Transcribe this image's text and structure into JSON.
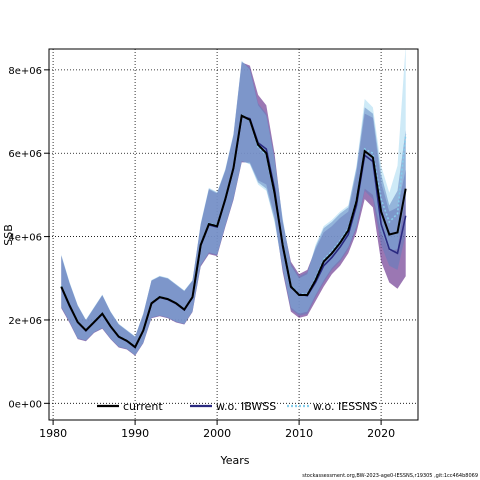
{
  "chart_data": {
    "type": "line",
    "xlabel": "Years",
    "ylabel": "SSB",
    "xlim": [
      1979.5,
      2024.5
    ],
    "ylim": [
      -400000,
      8500000
    ],
    "x_ticks": [
      1980,
      1990,
      2000,
      2010,
      2020
    ],
    "x_tick_labels": [
      "1980",
      "1990",
      "2000",
      "2010",
      "2020"
    ],
    "y_ticks": [
      0,
      2000000,
      4000000,
      6000000,
      8000000
    ],
    "y_tick_labels": [
      "0e+00",
      "2e+06",
      "4e+06",
      "6e+06",
      "8e+06"
    ],
    "grid": true,
    "legend_position": "bottom",
    "footer": "stockassessment.org,BW-2023-age0-IESSNS,r19305 ,git:1cc464b8069",
    "x": [
      1981,
      1982,
      1983,
      1984,
      1985,
      1986,
      1987,
      1988,
      1989,
      1990,
      1991,
      1992,
      1993,
      1994,
      1995,
      1996,
      1997,
      1998,
      1999,
      2000,
      2001,
      2002,
      2003,
      2004,
      2005,
      2006,
      2007,
      2008,
      2009,
      2010,
      2011,
      2012,
      2013,
      2014,
      2015,
      2016,
      2017,
      2018,
      2019,
      2020,
      2021,
      2022,
      2023
    ],
    "series": [
      {
        "name": "current",
        "color": "#000000",
        "band_color": "#5a7fbf",
        "values": [
          2800000,
          2350000,
          1950000,
          1750000,
          1950000,
          2150000,
          1850000,
          1600000,
          1500000,
          1350000,
          1750000,
          2400000,
          2550000,
          2500000,
          2400000,
          2250000,
          2550000,
          3800000,
          4300000,
          4250000,
          4900000,
          5650000,
          6900000,
          6800000,
          6200000,
          6000000,
          5050000,
          3800000,
          2800000,
          2600000,
          2600000,
          2950000,
          3400000,
          3600000,
          3850000,
          4150000,
          4850000,
          6050000,
          5900000,
          4600000,
          4050000,
          4100000,
          5150000
        ],
        "lower": [
          2300000,
          1950000,
          1550000,
          1500000,
          1700000,
          1800000,
          1550000,
          1350000,
          1300000,
          1150000,
          1450000,
          2050000,
          2100000,
          2050000,
          1950000,
          1900000,
          2200000,
          3300000,
          3600000,
          3550000,
          4250000,
          4900000,
          5800000,
          5750000,
          5300000,
          5150000,
          4400000,
          3200000,
          2250000,
          2100000,
          2150000,
          2550000,
          2900000,
          3200000,
          3400000,
          3700000,
          4200000,
          5100000,
          4900000,
          3800000,
          3300000,
          3200000,
          4050000
        ],
        "upper": [
          3550000,
          2900000,
          2350000,
          2000000,
          2300000,
          2600000,
          2200000,
          1900000,
          1750000,
          1600000,
          2150000,
          2950000,
          3050000,
          3000000,
          2850000,
          2700000,
          2950000,
          4300000,
          5150000,
          5050000,
          5600000,
          6450000,
          8200000,
          8050000,
          7200000,
          6950000,
          5900000,
          4400000,
          3350000,
          3050000,
          3150000,
          3750000,
          4200000,
          4350000,
          4550000,
          4700000,
          5650000,
          7100000,
          6950000,
          5500000,
          4750000,
          5100000,
          6550000
        ]
      },
      {
        "name": "w.o. IBWSS",
        "color": "#2a2a80",
        "band_color": "#7a4a9a",
        "values": [
          2780000,
          2330000,
          1940000,
          1740000,
          1940000,
          2140000,
          1840000,
          1590000,
          1490000,
          1340000,
          1740000,
          2390000,
          2540000,
          2490000,
          2390000,
          2240000,
          2540000,
          3780000,
          4280000,
          4230000,
          4880000,
          5630000,
          6880000,
          6830000,
          6250000,
          6100000,
          5150000,
          3750000,
          2780000,
          2620000,
          2580000,
          2900000,
          3300000,
          3500000,
          3750000,
          4050000,
          4750000,
          5950000,
          5800000,
          4300000,
          3700000,
          3600000,
          4500000
        ],
        "lower": [
          2280000,
          1930000,
          1540000,
          1490000,
          1690000,
          1790000,
          1540000,
          1340000,
          1290000,
          1140000,
          1440000,
          2040000,
          2090000,
          2040000,
          1940000,
          1890000,
          2190000,
          3280000,
          3580000,
          3530000,
          4230000,
          4880000,
          5780000,
          5780000,
          5350000,
          5250000,
          4500000,
          3150000,
          2200000,
          2050000,
          2100000,
          2450000,
          2800000,
          3100000,
          3300000,
          3600000,
          4100000,
          4900000,
          4700000,
          3400000,
          2900000,
          2750000,
          3050000
        ],
        "upper": [
          3530000,
          2880000,
          2340000,
          1990000,
          2290000,
          2590000,
          2190000,
          1890000,
          1740000,
          1590000,
          2140000,
          2940000,
          3040000,
          2990000,
          2840000,
          2690000,
          2940000,
          4280000,
          5130000,
          5030000,
          5580000,
          6430000,
          8180000,
          8100000,
          7400000,
          7150000,
          6000000,
          4350000,
          3400000,
          3100000,
          3200000,
          3700000,
          4100000,
          4250000,
          4450000,
          4600000,
          5550000,
          6950000,
          6850000,
          5300000,
          4600000,
          4700000,
          5600000
        ]
      },
      {
        "name": "w.o. IESSNS",
        "color": "#87ceeb",
        "band_color": "#a6d8f0",
        "values": [
          2820000,
          2360000,
          1960000,
          1760000,
          1960000,
          2160000,
          1860000,
          1610000,
          1510000,
          1360000,
          1760000,
          2410000,
          2560000,
          2510000,
          2410000,
          2260000,
          2560000,
          3820000,
          4320000,
          4270000,
          4920000,
          5670000,
          6920000,
          6780000,
          6150000,
          5950000,
          5000000,
          3850000,
          2830000,
          2620000,
          2620000,
          3000000,
          3450000,
          3650000,
          3900000,
          4200000,
          4900000,
          6100000,
          6000000,
          4900000,
          4350000,
          4550000,
          6450000
        ],
        "lower": [
          2320000,
          1960000,
          1560000,
          1510000,
          1710000,
          1810000,
          1560000,
          1360000,
          1310000,
          1160000,
          1460000,
          2060000,
          2110000,
          2060000,
          1960000,
          1910000,
          2210000,
          3320000,
          3620000,
          3570000,
          4270000,
          4920000,
          5820000,
          5730000,
          5250000,
          5100000,
          4350000,
          3250000,
          2300000,
          2150000,
          2200000,
          2600000,
          2950000,
          3250000,
          3450000,
          3750000,
          4250000,
          5150000,
          5000000,
          4100000,
          3650000,
          3700000,
          5000000
        ],
        "upper": [
          3570000,
          2910000,
          2360000,
          2010000,
          2310000,
          2610000,
          2210000,
          1910000,
          1760000,
          1610000,
          2160000,
          2960000,
          3060000,
          3010000,
          2860000,
          2710000,
          2960000,
          4320000,
          5170000,
          5070000,
          5620000,
          6470000,
          8220000,
          8000000,
          7150000,
          6900000,
          5850000,
          4450000,
          3300000,
          3000000,
          3100000,
          3800000,
          4250000,
          4400000,
          4600000,
          4750000,
          5700000,
          7300000,
          7100000,
          5700000,
          5050000,
          5700000,
          8600000
        ]
      }
    ]
  }
}
